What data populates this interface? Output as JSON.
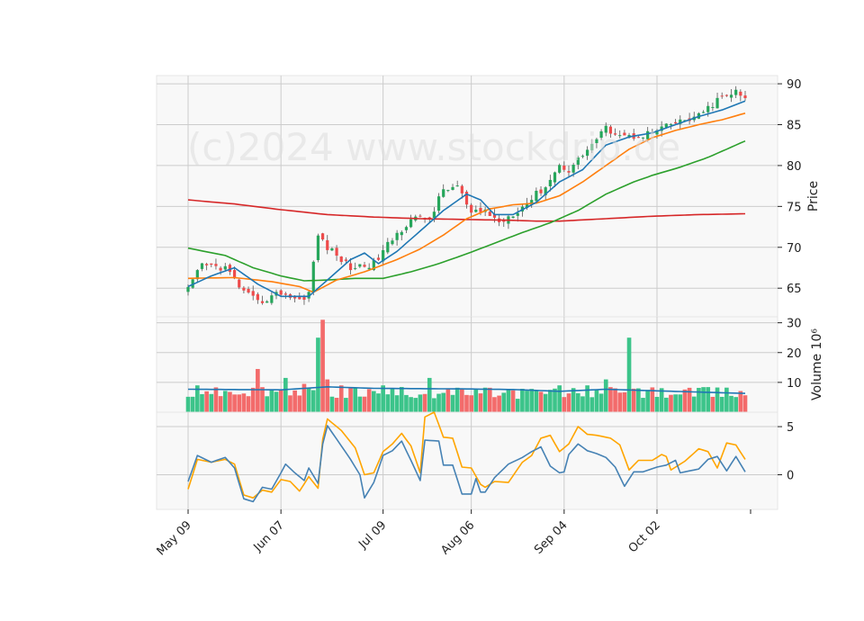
{
  "watermark": "(c)2024 www.stockdrip.de",
  "colors": {
    "up": "#26a65b",
    "down": "#ee4b4b",
    "sma_fast": "#1f77b4",
    "sma_mid": "#ff7f0e",
    "sma_slow": "#2ca02c",
    "sma_long": "#d62728",
    "vol_up": "#3cc48a",
    "vol_down": "#f36b6b",
    "vol_avg": "#1f77b4",
    "osc_a": "#4682b4",
    "osc_b": "#ffa500",
    "panel_bg": "#f8f8f8",
    "grid": "#cccccc"
  },
  "chart_data": {
    "type": "candlestick",
    "x_ticks": [
      "May 09",
      "Jun 07",
      "Jul 09",
      "Aug 06",
      "Sep 04",
      "Oct 02"
    ],
    "x_tick_index": [
      0,
      20,
      42,
      61,
      81,
      101
    ],
    "num_bars": 121,
    "price": {
      "ylabel": "Price",
      "ylim": [
        61.5,
        91
      ],
      "yticks": [
        65,
        70,
        75,
        80,
        85,
        90
      ],
      "anchors": [
        [
          0,
          64.8
        ],
        [
          3,
          67.8
        ],
        [
          8,
          67.5
        ],
        [
          12,
          64.5
        ],
        [
          15,
          63.2
        ],
        [
          20,
          64.5
        ],
        [
          24,
          63.5
        ],
        [
          26,
          64.5
        ],
        [
          28,
          71.5
        ],
        [
          30,
          70
        ],
        [
          35,
          67.5
        ],
        [
          40,
          68
        ],
        [
          44,
          71
        ],
        [
          48,
          73.5
        ],
        [
          52,
          73.5
        ],
        [
          55,
          77
        ],
        [
          58,
          77.5
        ],
        [
          61,
          74
        ],
        [
          64,
          74.5
        ],
        [
          67,
          73
        ],
        [
          72,
          75
        ],
        [
          77,
          77.5
        ],
        [
          80,
          80
        ],
        [
          82,
          79.5
        ],
        [
          86,
          82
        ],
        [
          90,
          84.5
        ],
        [
          95,
          83.5
        ],
        [
          100,
          84
        ],
        [
          104,
          85
        ],
        [
          110,
          86
        ],
        [
          114,
          88
        ],
        [
          118,
          89
        ],
        [
          120,
          88
        ]
      ],
      "sma_fast_anchors": [
        [
          0,
          65.2
        ],
        [
          5,
          66.5
        ],
        [
          10,
          67.5
        ],
        [
          15,
          65.5
        ],
        [
          20,
          64
        ],
        [
          26,
          64
        ],
        [
          30,
          66
        ],
        [
          35,
          68.5
        ],
        [
          38,
          69.3
        ],
        [
          41,
          68
        ],
        [
          45,
          69.5
        ],
        [
          50,
          72
        ],
        [
          55,
          74.5
        ],
        [
          60,
          76.5
        ],
        [
          63,
          75.8
        ],
        [
          66,
          74
        ],
        [
          70,
          74
        ],
        [
          75,
          75.5
        ],
        [
          80,
          78
        ],
        [
          85,
          79.5
        ],
        [
          90,
          82.5
        ],
        [
          95,
          83.5
        ],
        [
          100,
          84
        ],
        [
          105,
          85
        ],
        [
          110,
          86
        ],
        [
          115,
          86.8
        ],
        [
          120,
          87.9
        ]
      ],
      "sma_mid_anchors": [
        [
          0,
          66.2
        ],
        [
          10,
          66.3
        ],
        [
          18,
          65.8
        ],
        [
          24,
          65.2
        ],
        [
          27,
          64.5
        ],
        [
          32,
          66
        ],
        [
          38,
          67
        ],
        [
          45,
          68.5
        ],
        [
          50,
          69.8
        ],
        [
          55,
          71.5
        ],
        [
          60,
          73.5
        ],
        [
          65,
          74.7
        ],
        [
          70,
          75.2
        ],
        [
          75,
          75.4
        ],
        [
          80,
          76.3
        ],
        [
          85,
          78
        ],
        [
          90,
          80
        ],
        [
          95,
          82
        ],
        [
          100,
          83.4
        ],
        [
          105,
          84.3
        ],
        [
          110,
          85
        ],
        [
          115,
          85.6
        ],
        [
          120,
          86.4
        ]
      ],
      "sma_slow_anchors": [
        [
          0,
          69.9
        ],
        [
          8,
          69
        ],
        [
          14,
          67.5
        ],
        [
          20,
          66.5
        ],
        [
          25,
          65.9
        ],
        [
          30,
          66
        ],
        [
          36,
          66.2
        ],
        [
          42,
          66.2
        ],
        [
          48,
          67
        ],
        [
          54,
          68
        ],
        [
          60,
          69.2
        ],
        [
          66,
          70.5
        ],
        [
          72,
          71.8
        ],
        [
          78,
          73
        ],
        [
          84,
          74.5
        ],
        [
          90,
          76.5
        ],
        [
          96,
          78
        ],
        [
          100,
          78.8
        ],
        [
          106,
          79.8
        ],
        [
          112,
          81
        ],
        [
          116,
          82
        ],
        [
          120,
          83
        ]
      ],
      "sma_long_anchors": [
        [
          0,
          75.8
        ],
        [
          10,
          75.3
        ],
        [
          20,
          74.6
        ],
        [
          30,
          74
        ],
        [
          40,
          73.7
        ],
        [
          50,
          73.5
        ],
        [
          60,
          73.4
        ],
        [
          70,
          73.3
        ],
        [
          75,
          73.2
        ],
        [
          80,
          73.2
        ],
        [
          90,
          73.5
        ],
        [
          100,
          73.8
        ],
        [
          110,
          74
        ],
        [
          120,
          74.1
        ]
      ]
    },
    "volume": {
      "ylabel": "Volume  10⁶",
      "ylim": [
        0,
        32
      ],
      "yticks": [
        10,
        20,
        30
      ],
      "base_level": 6.5,
      "spikes": [
        [
          2,
          9
        ],
        [
          4,
          7
        ],
        [
          15,
          14.5
        ],
        [
          21,
          11.5
        ],
        [
          25,
          9.5
        ],
        [
          28,
          25
        ],
        [
          29,
          31
        ],
        [
          30,
          11
        ],
        [
          33,
          9
        ],
        [
          36,
          8
        ],
        [
          42,
          9
        ],
        [
          52,
          11.5
        ],
        [
          56,
          8
        ],
        [
          80,
          9
        ],
        [
          86,
          9
        ],
        [
          90,
          11
        ],
        [
          92,
          8
        ],
        [
          95,
          25
        ],
        [
          97,
          8
        ],
        [
          99,
          7.5
        ]
      ],
      "avg_anchors": [
        [
          0,
          7.7
        ],
        [
          20,
          7.5
        ],
        [
          30,
          8.5
        ],
        [
          40,
          8
        ],
        [
          60,
          7.8
        ],
        [
          70,
          7.6
        ],
        [
          80,
          7
        ],
        [
          90,
          7.7
        ],
        [
          100,
          7.2
        ],
        [
          120,
          6.3
        ]
      ]
    },
    "oscillator": {
      "ylim": [
        -3.6,
        6.5
      ],
      "yticks": [
        0,
        5
      ],
      "line_a_anchors": [
        [
          0,
          -0.7
        ],
        [
          2,
          2
        ],
        [
          5,
          1.3
        ],
        [
          8,
          1.8
        ],
        [
          10,
          0.7
        ],
        [
          12,
          -2.5
        ],
        [
          14,
          -2.8
        ],
        [
          16,
          -1.3
        ],
        [
          18,
          -1.5
        ],
        [
          20,
          0.2
        ],
        [
          21,
          1.1
        ],
        [
          23,
          0.2
        ],
        [
          25,
          -0.6
        ],
        [
          26,
          0.7
        ],
        [
          28,
          -0.9
        ],
        [
          29,
          3.2
        ],
        [
          30,
          5.1
        ],
        [
          33,
          3
        ],
        [
          35,
          1.6
        ],
        [
          37,
          0
        ],
        [
          38,
          -2.4
        ],
        [
          40,
          -0.8
        ],
        [
          42,
          2
        ],
        [
          44,
          2.5
        ],
        [
          46,
          3.5
        ],
        [
          48,
          1.5
        ],
        [
          50,
          -0.6
        ],
        [
          51,
          3.6
        ],
        [
          54,
          3.5
        ],
        [
          55,
          1
        ],
        [
          57,
          1
        ],
        [
          59,
          -2
        ],
        [
          61,
          -2
        ],
        [
          62,
          -0.4
        ],
        [
          63,
          -1.8
        ],
        [
          64,
          -1.8
        ],
        [
          66,
          -0.3
        ],
        [
          69,
          1.1
        ],
        [
          72,
          1.8
        ],
        [
          74,
          2.4
        ],
        [
          76,
          2.9
        ],
        [
          78,
          0.9
        ],
        [
          80,
          0.2
        ],
        [
          81,
          0.3
        ],
        [
          82,
          2.1
        ],
        [
          84,
          3.2
        ],
        [
          86,
          2.5
        ],
        [
          88,
          2.2
        ],
        [
          90,
          1.8
        ],
        [
          92,
          0.8
        ],
        [
          94,
          -1.2
        ],
        [
          96,
          0.3
        ],
        [
          98,
          0.3
        ],
        [
          101,
          0.8
        ],
        [
          103,
          1
        ],
        [
          105,
          1.5
        ],
        [
          106,
          0.2
        ],
        [
          110,
          0.6
        ],
        [
          112,
          1.6
        ],
        [
          114,
          1.9
        ],
        [
          116,
          0.4
        ],
        [
          118,
          1.9
        ],
        [
          120,
          0.3
        ]
      ],
      "line_b_anchors": [
        [
          0,
          -1.5
        ],
        [
          2,
          1.6
        ],
        [
          5,
          1.3
        ],
        [
          8,
          1.6
        ],
        [
          10,
          1.1
        ],
        [
          12,
          -2.1
        ],
        [
          14,
          -2.4
        ],
        [
          16,
          -1.6
        ],
        [
          18,
          -1.8
        ],
        [
          20,
          -0.5
        ],
        [
          22,
          -0.7
        ],
        [
          24,
          -1.7
        ],
        [
          26,
          -0.2
        ],
        [
          28,
          -1.4
        ],
        [
          29,
          3.7
        ],
        [
          30,
          5.8
        ],
        [
          33,
          4.6
        ],
        [
          36,
          2.8
        ],
        [
          38,
          0
        ],
        [
          40,
          0.2
        ],
        [
          42,
          2.4
        ],
        [
          44,
          3.2
        ],
        [
          46,
          4.3
        ],
        [
          48,
          3
        ],
        [
          50,
          0.2
        ],
        [
          51,
          6
        ],
        [
          53,
          6.5
        ],
        [
          55,
          3.9
        ],
        [
          57,
          3.8
        ],
        [
          59,
          0.8
        ],
        [
          61,
          0.7
        ],
        [
          63,
          -1
        ],
        [
          64,
          -1.3
        ],
        [
          66,
          -0.7
        ],
        [
          69,
          -0.8
        ],
        [
          72,
          1.3
        ],
        [
          74,
          2
        ],
        [
          76,
          3.8
        ],
        [
          78,
          4.1
        ],
        [
          80,
          2.4
        ],
        [
          82,
          3.2
        ],
        [
          84,
          5
        ],
        [
          86,
          4.2
        ],
        [
          88,
          4.1
        ],
        [
          91,
          3.8
        ],
        [
          93,
          3.1
        ],
        [
          95,
          0.5
        ],
        [
          97,
          1.5
        ],
        [
          100,
          1.5
        ],
        [
          102,
          2.1
        ],
        [
          103,
          1.9
        ],
        [
          104,
          0.5
        ],
        [
          107,
          1.4
        ],
        [
          110,
          2.7
        ],
        [
          112,
          2.4
        ],
        [
          114,
          0.7
        ],
        [
          116,
          3.3
        ],
        [
          118,
          3.1
        ],
        [
          120,
          1.6
        ]
      ]
    }
  }
}
